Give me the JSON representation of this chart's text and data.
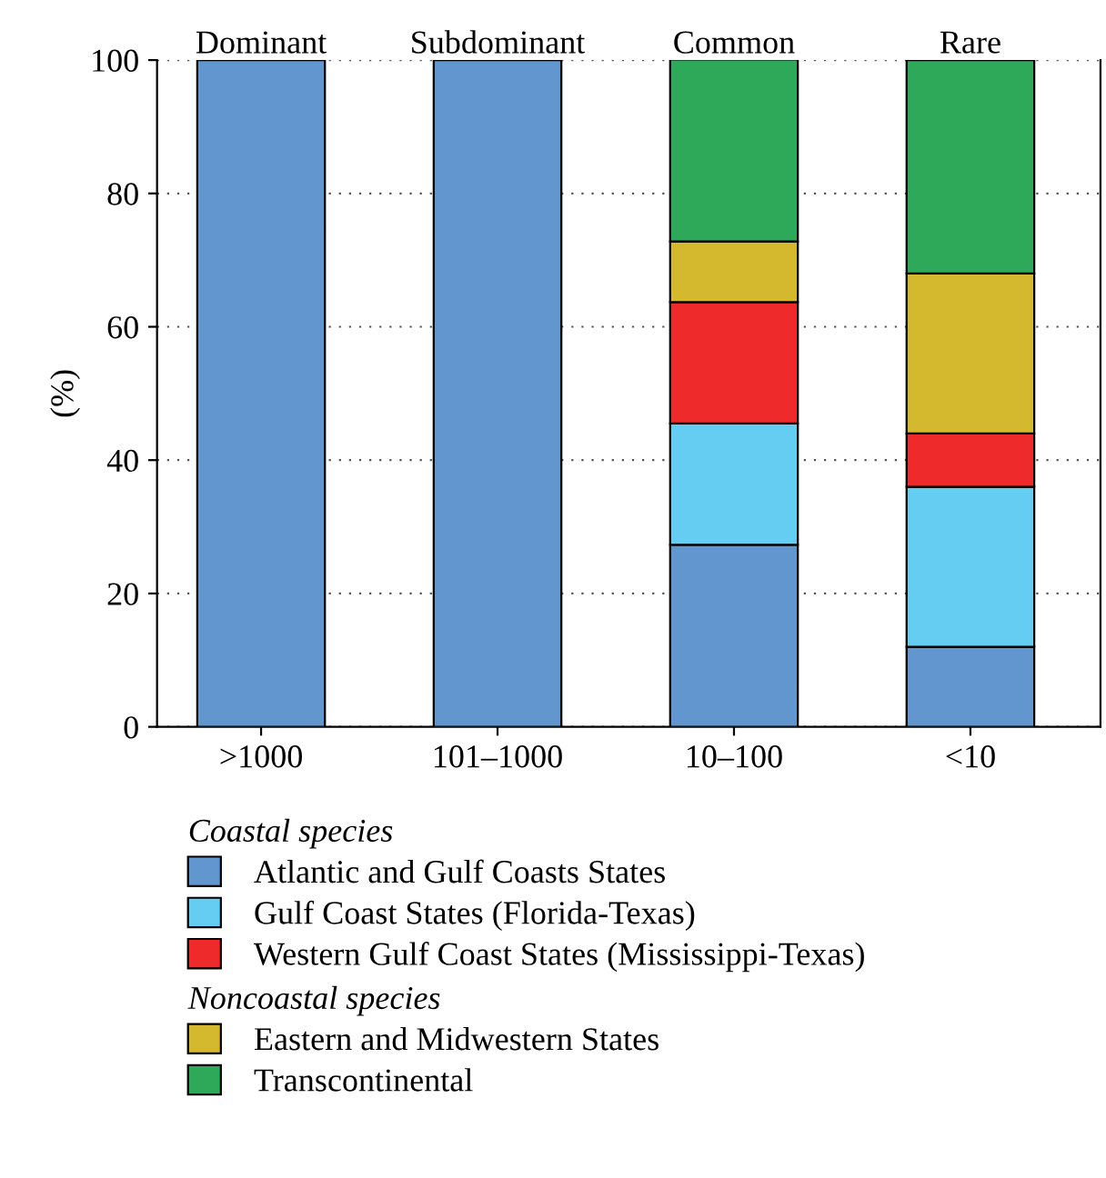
{
  "chart_data": {
    "type": "bar",
    "stacked": true,
    "ylabel": "(%)",
    "categories": [
      ">1000",
      "101–1000",
      "10–100",
      "<10"
    ],
    "series": [
      {
        "name": "Atlantic and Gulf Coasts States",
        "color": "#6196cf",
        "values": [
          100,
          100,
          27.3,
          12
        ]
      },
      {
        "name": "Gulf Coast States (Florida-Texas)",
        "color": "#66cdf2",
        "values": [
          0,
          0,
          18.2,
          24
        ]
      },
      {
        "name": "Western Gulf Coast States (Mississippi-Texas)",
        "color": "#ee2a2a",
        "values": [
          0,
          0,
          18.2,
          8
        ]
      },
      {
        "name": "Eastern and Midwestern States",
        "color": "#d4b92f",
        "values": [
          0,
          0,
          9.1,
          24
        ]
      },
      {
        "name": "Transcontinental",
        "color": "#2ea95a",
        "values": [
          0,
          0,
          27.3,
          32
        ]
      }
    ],
    "ylim": [
      0,
      100
    ],
    "yticks": [
      0,
      20,
      40,
      60,
      80,
      100
    ],
    "grid": "y",
    "legend": "bottom",
    "annotations": [
      "Dominant",
      "Subdominant",
      "Common",
      "Rare",
      "Coastal species",
      "Noncoastal species"
    ]
  }
}
